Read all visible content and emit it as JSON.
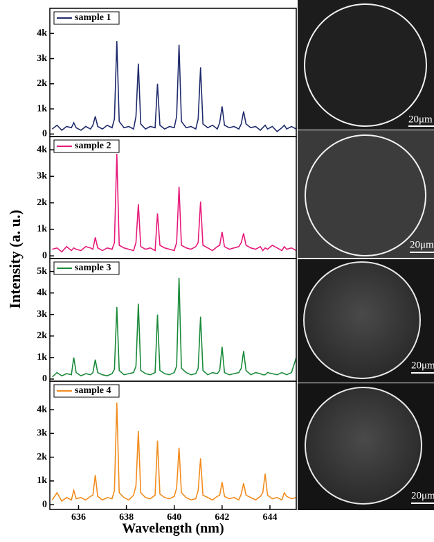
{
  "ylabel": "Intensity (a. u.)",
  "scale_bars": [
    "20μm",
    "20μm",
    "20μm",
    "20μm"
  ],
  "chart_data": [
    {
      "type": "line",
      "xlim": [
        634.8,
        645.1
      ],
      "ylim": [
        -100,
        5000
      ],
      "yticks": [
        0,
        {
          "value": 1000,
          "label": "1k"
        },
        {
          "value": 2000,
          "label": "2k"
        },
        {
          "value": 3000,
          "label": "3k"
        },
        {
          "value": 4000,
          "label": "4k"
        }
      ],
      "x": [
        634.9,
        635.1,
        635.3,
        635.5,
        635.7,
        635.8,
        635.9,
        636.1,
        636.3,
        636.5,
        636.6,
        636.7,
        636.8,
        637.0,
        637.2,
        637.4,
        637.5,
        637.6,
        637.7,
        637.9,
        638.1,
        638.3,
        638.4,
        638.5,
        638.6,
        638.8,
        639.0,
        639.2,
        639.3,
        639.4,
        639.6,
        639.8,
        640.0,
        640.1,
        640.2,
        640.3,
        640.5,
        640.7,
        640.9,
        641.0,
        641.1,
        641.2,
        641.4,
        641.6,
        641.8,
        641.9,
        642.0,
        642.1,
        642.3,
        642.5,
        642.7,
        642.8,
        642.9,
        643.0,
        643.2,
        643.4,
        643.6,
        643.7,
        643.8,
        643.9,
        644.1,
        644.3,
        644.5,
        644.6,
        644.7,
        644.9,
        645.1
      ],
      "series": [
        {
          "name": "sample 1",
          "color": "#1f2a6b",
          "values": [
            200,
            350,
            150,
            300,
            250,
            450,
            250,
            150,
            300,
            200,
            350,
            700,
            300,
            200,
            350,
            250,
            600,
            3700,
            500,
            250,
            300,
            200,
            700,
            2800,
            400,
            200,
            300,
            250,
            2000,
            350,
            200,
            300,
            250,
            700,
            3550,
            500,
            250,
            300,
            200,
            600,
            2650,
            400,
            250,
            350,
            200,
            450,
            1100,
            350,
            250,
            300,
            200,
            400,
            900,
            400,
            250,
            300,
            150,
            250,
            350,
            200,
            300,
            100,
            250,
            350,
            200,
            300,
            200
          ]
        }
      ]
    },
    {
      "type": "line",
      "xlim": [
        634.8,
        645.1
      ],
      "ylim": [
        -100,
        4500
      ],
      "yticks": [
        0,
        {
          "value": 1000,
          "label": "1k"
        },
        {
          "value": 2000,
          "label": "2k"
        },
        {
          "value": 3000,
          "label": "3k"
        },
        {
          "value": 4000,
          "label": "4k"
        }
      ],
      "x": [
        634.9,
        635.1,
        635.3,
        635.5,
        635.7,
        635.8,
        635.9,
        636.1,
        636.3,
        636.5,
        636.6,
        636.7,
        636.8,
        637.0,
        637.2,
        637.4,
        637.5,
        637.6,
        637.7,
        637.9,
        638.1,
        638.3,
        638.4,
        638.5,
        638.6,
        638.8,
        639.0,
        639.2,
        639.3,
        639.4,
        639.6,
        639.8,
        640.0,
        640.1,
        640.2,
        640.3,
        640.5,
        640.7,
        640.9,
        641.0,
        641.1,
        641.2,
        641.4,
        641.6,
        641.8,
        641.9,
        642.0,
        642.1,
        642.3,
        642.5,
        642.7,
        642.8,
        642.9,
        643.0,
        643.2,
        643.4,
        643.6,
        643.7,
        643.8,
        643.9,
        644.1,
        644.3,
        644.5,
        644.6,
        644.7,
        644.9,
        645.1
      ],
      "series": [
        {
          "name": "sample 2",
          "color": "#e6197a",
          "values": [
            250,
            300,
            150,
            350,
            200,
            300,
            250,
            200,
            350,
            300,
            250,
            700,
            300,
            200,
            300,
            250,
            500,
            3850,
            400,
            300,
            250,
            200,
            500,
            1950,
            350,
            250,
            300,
            200,
            1600,
            400,
            300,
            250,
            200,
            500,
            2600,
            400,
            300,
            250,
            350,
            500,
            2050,
            400,
            300,
            200,
            350,
            400,
            900,
            350,
            250,
            300,
            350,
            500,
            850,
            400,
            300,
            250,
            350,
            200,
            300,
            250,
            400,
            300,
            200,
            350,
            250,
            300,
            200
          ]
        }
      ]
    },
    {
      "type": "line",
      "xlim": [
        634.8,
        645.1
      ],
      "ylim": [
        -100,
        5600
      ],
      "yticks": [
        0,
        {
          "value": 1000,
          "label": "1k"
        },
        {
          "value": 2000,
          "label": "2k"
        },
        {
          "value": 3000,
          "label": "3k"
        },
        {
          "value": 4000,
          "label": "4k"
        },
        {
          "value": 5000,
          "label": "5k"
        }
      ],
      "x": [
        634.9,
        635.1,
        635.3,
        635.5,
        635.7,
        635.8,
        635.9,
        636.1,
        636.3,
        636.5,
        636.6,
        636.7,
        636.8,
        637.0,
        637.2,
        637.4,
        637.5,
        637.6,
        637.7,
        637.9,
        638.1,
        638.3,
        638.4,
        638.5,
        638.6,
        638.8,
        639.0,
        639.2,
        639.3,
        639.4,
        639.6,
        639.8,
        640.0,
        640.1,
        640.2,
        640.3,
        640.5,
        640.7,
        640.9,
        641.0,
        641.1,
        641.2,
        641.4,
        641.6,
        641.8,
        641.9,
        642.0,
        642.1,
        642.3,
        642.5,
        642.7,
        642.8,
        642.9,
        643.0,
        643.2,
        643.4,
        643.6,
        643.7,
        643.8,
        643.9,
        644.1,
        644.3,
        644.5,
        644.6,
        644.7,
        644.9,
        645.1
      ],
      "series": [
        {
          "name": "sample 3",
          "color": "#1a8a3a",
          "values": [
            100,
            300,
            150,
            250,
            200,
            1000,
            300,
            150,
            250,
            200,
            300,
            900,
            300,
            200,
            150,
            250,
            450,
            3350,
            400,
            200,
            250,
            300,
            600,
            3500,
            400,
            250,
            200,
            300,
            3000,
            400,
            250,
            200,
            300,
            600,
            4700,
            500,
            300,
            200,
            250,
            500,
            2900,
            400,
            200,
            300,
            250,
            400,
            1500,
            300,
            200,
            250,
            300,
            500,
            1300,
            400,
            200,
            300,
            250,
            200,
            200,
            300,
            250,
            200,
            300,
            250,
            200,
            300,
            1000
          ]
        }
      ]
    },
    {
      "type": "line",
      "xlim": [
        634.8,
        645.1
      ],
      "ylim": [
        -200,
        5200
      ],
      "yticks": [
        0,
        {
          "value": 1000,
          "label": "1k"
        },
        {
          "value": 2000,
          "label": "2k"
        },
        {
          "value": 3000,
          "label": "3k"
        },
        {
          "value": 4000,
          "label": "4k"
        }
      ],
      "xticks": [
        636,
        638,
        640,
        642,
        644
      ],
      "xlabel": "Wavelength (nm)",
      "x": [
        634.9,
        635.1,
        635.3,
        635.5,
        635.7,
        635.8,
        635.9,
        636.1,
        636.3,
        636.5,
        636.6,
        636.7,
        636.8,
        637.0,
        637.2,
        637.4,
        637.5,
        637.6,
        637.7,
        637.9,
        638.1,
        638.3,
        638.4,
        638.5,
        638.6,
        638.8,
        639.0,
        639.2,
        639.3,
        639.4,
        639.6,
        639.8,
        640.0,
        640.1,
        640.2,
        640.3,
        640.5,
        640.7,
        640.9,
        641.0,
        641.1,
        641.2,
        641.4,
        641.6,
        641.8,
        641.9,
        642.0,
        642.1,
        642.3,
        642.5,
        642.7,
        642.8,
        642.9,
        643.0,
        643.2,
        643.4,
        643.6,
        643.7,
        643.8,
        643.9,
        644.1,
        644.3,
        644.5,
        644.6,
        644.7,
        644.9,
        645.1
      ],
      "series": [
        {
          "name": "sample 4",
          "color": "#f28c1e",
          "values": [
            200,
            500,
            150,
            300,
            200,
            600,
            250,
            300,
            200,
            350,
            400,
            1250,
            350,
            200,
            300,
            250,
            600,
            4300,
            500,
            300,
            200,
            400,
            800,
            3100,
            500,
            300,
            250,
            400,
            2700,
            450,
            300,
            250,
            350,
            700,
            2400,
            500,
            300,
            200,
            250,
            600,
            1950,
            400,
            300,
            200,
            350,
            400,
            950,
            350,
            250,
            300,
            200,
            450,
            900,
            400,
            300,
            200,
            350,
            500,
            1300,
            400,
            250,
            300,
            200,
            500,
            350,
            250,
            300
          ]
        }
      ]
    }
  ]
}
